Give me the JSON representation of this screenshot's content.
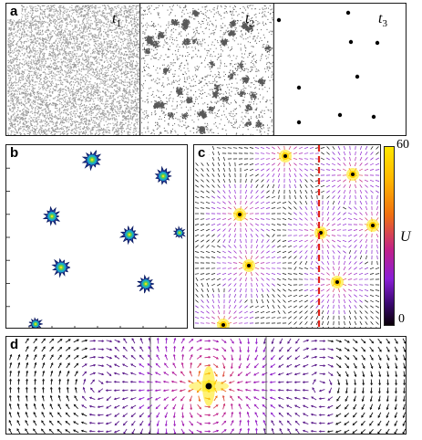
{
  "panel_a": {
    "label": "a",
    "snapshots": [
      {
        "label": "t",
        "sub": "1"
      },
      {
        "label": "t",
        "sub": "2"
      },
      {
        "label": "t",
        "sub": "3"
      }
    ]
  },
  "panel_b": {
    "label": "b"
  },
  "panel_c": {
    "label": "c",
    "colorbar": {
      "max_label": "60",
      "min_label": "0",
      "title": "U"
    }
  },
  "panel_d": {
    "label": "d"
  },
  "colors": {
    "red_line": "#e0241c",
    "cmap_top": "#ffe600",
    "cmap_mid": "#e8520f",
    "cmap_low": "#8a1fd6",
    "cmap_bottom": "#0a0008"
  }
}
